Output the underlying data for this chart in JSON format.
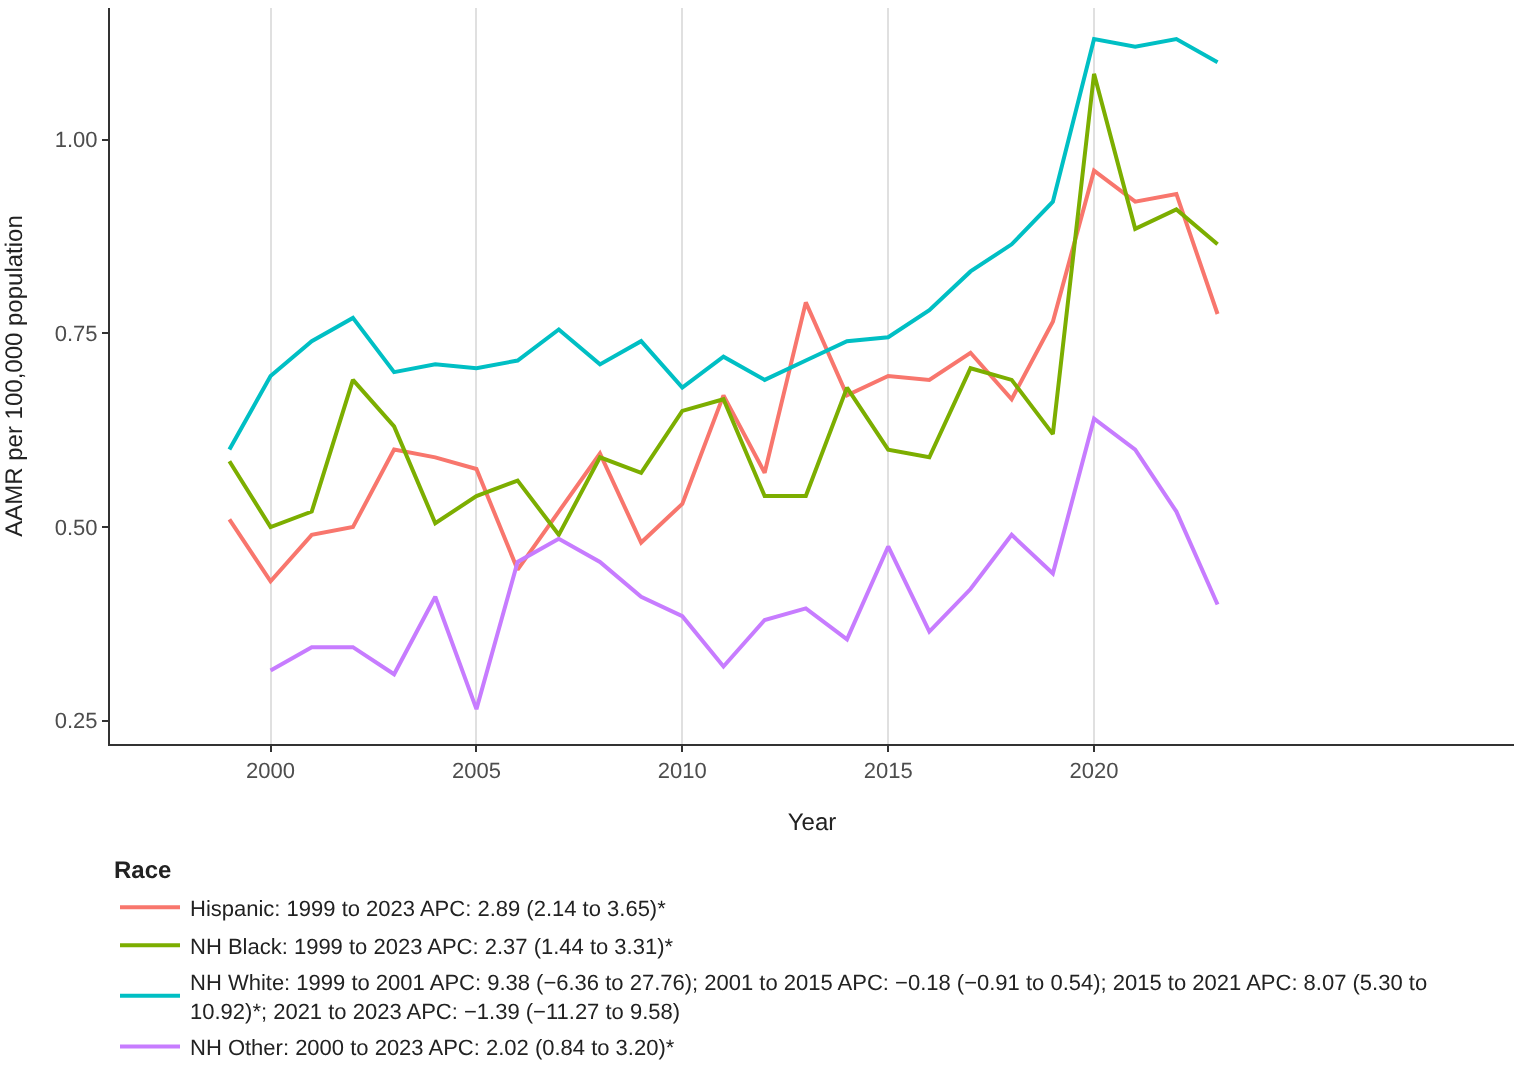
{
  "chart_data": {
    "type": "line",
    "xlabel": "Year",
    "ylabel": "AAMR per 100,000 population",
    "legend_title": "Race",
    "legend": "bottom",
    "grid": "x",
    "xlim": [
      1996.1,
      2030.2
    ],
    "xticks": [
      2000,
      2005,
      2010,
      2015,
      2020
    ],
    "ylim": [
      0.22,
      1.17
    ],
    "yticks": [
      {
        "value": 0.25,
        "label": "0.25"
      },
      {
        "value": 0.5,
        "label": "0.50"
      },
      {
        "value": 0.75,
        "label": "0.75"
      },
      {
        "value": 1.0,
        "label": "1.00"
      }
    ],
    "x": [
      1999,
      2000,
      2001,
      2002,
      2003,
      2004,
      2005,
      2006,
      2007,
      2008,
      2009,
      2010,
      2011,
      2012,
      2013,
      2014,
      2015,
      2016,
      2017,
      2018,
      2019,
      2020,
      2021,
      2022,
      2023
    ],
    "series": [
      {
        "name": "Hispanic: 1999 to 2023 APC: 2.89 (2.14 to 3.65)*",
        "color": "#f8766d",
        "values": [
          0.51,
          0.43,
          0.49,
          0.5,
          0.6,
          0.59,
          0.575,
          0.445,
          0.52,
          0.595,
          0.48,
          0.53,
          0.67,
          0.57,
          0.79,
          0.67,
          0.695,
          0.69,
          0.725,
          0.665,
          0.765,
          0.96,
          0.92,
          0.93,
          0.775
        ]
      },
      {
        "name": "NH Black: 1999 to 2023 APC: 2.37 (1.44 to 3.31)*",
        "color": "#7cae00",
        "values": [
          0.585,
          0.5,
          0.52,
          0.69,
          0.63,
          0.505,
          0.54,
          0.56,
          0.49,
          0.59,
          0.57,
          0.65,
          0.665,
          0.54,
          0.54,
          0.68,
          0.6,
          0.59,
          0.705,
          0.69,
          0.62,
          1.085,
          0.885,
          0.91,
          0.865
        ]
      },
      {
        "name": "NH White: 1999 to 2001 APC: 9.38 (−6.36 to 27.76); 2001 to 2015 APC: −0.18 (−0.91 to 0.54); 2015 to 2021 APC: 8.07 (5.30 to 10.92)*; 2021 to 2023 APC: −1.39 (−11.27 to 9.58)",
        "color": "#00bfc4",
        "values": [
          0.6,
          0.695,
          0.74,
          0.77,
          0.7,
          0.71,
          0.705,
          0.715,
          0.755,
          0.71,
          0.74,
          0.68,
          0.72,
          0.69,
          0.715,
          0.74,
          0.745,
          0.78,
          0.83,
          0.865,
          0.92,
          1.13,
          1.12,
          1.13,
          1.1
        ]
      },
      {
        "name": "NH Other: 2000 to 2023 APC: 2.02 (0.84 to 3.20)*",
        "color": "#c77cff",
        "values": [
          null,
          0.315,
          0.345,
          0.345,
          0.31,
          0.41,
          0.265,
          0.455,
          0.485,
          0.455,
          0.41,
          0.385,
          0.32,
          0.38,
          0.395,
          0.355,
          0.475,
          0.365,
          0.42,
          0.49,
          0.44,
          0.64,
          0.6,
          0.52,
          0.4
        ]
      }
    ]
  }
}
